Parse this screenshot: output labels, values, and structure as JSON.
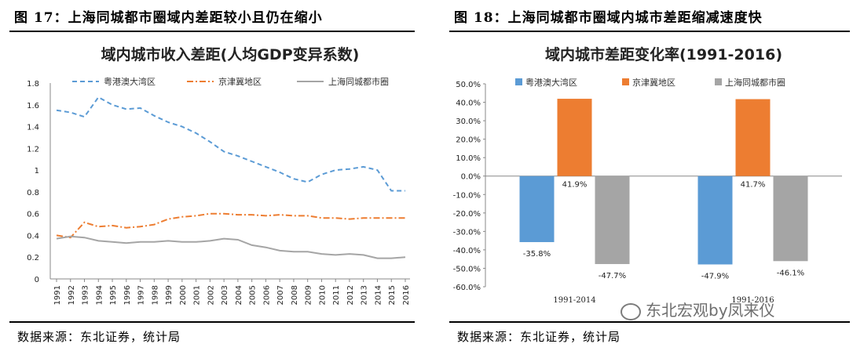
{
  "left": {
    "figure_title": "图 17：上海同城都市圈域内差距较小且仍在缩小",
    "source": "数据来源：东北证券，统计局"
  },
  "right": {
    "figure_title": "图 18：上海同城都市圈域内城市差距缩减速度快",
    "source": "数据来源：东北证券，统计局"
  },
  "watermark": "东北宏观by凤来仪",
  "chart_data": [
    {
      "type": "line",
      "title": "域内城市收入差距(人均GDP变异系数)",
      "xlabel": "",
      "ylabel": "",
      "ylim": [
        0,
        1.8
      ],
      "yticks": [
        "0",
        "0.2",
        "0.4",
        "0.6",
        "0.8",
        "1",
        "1.2",
        "1.4",
        "1.6",
        "1.8"
      ],
      "x": [
        "1991",
        "1992",
        "1993",
        "1994",
        "1995",
        "1996",
        "1997",
        "1998",
        "1999",
        "2000",
        "2001",
        "2002",
        "2003",
        "2004",
        "2005",
        "2006",
        "2007",
        "2008",
        "2009",
        "2010",
        "2011",
        "2012",
        "2013",
        "2014",
        "2015",
        "2016"
      ],
      "series": [
        {
          "name": "粤港澳大湾区",
          "style": "dashed",
          "color": "#5b9bd5",
          "values": [
            1.55,
            1.53,
            1.49,
            1.67,
            1.6,
            1.56,
            1.57,
            1.5,
            1.44,
            1.4,
            1.34,
            1.26,
            1.17,
            1.13,
            1.08,
            1.03,
            0.98,
            0.92,
            0.89,
            0.96,
            1.0,
            1.01,
            1.03,
            1.0,
            0.81,
            0.81
          ]
        },
        {
          "name": "京津冀地区",
          "style": "dashdot",
          "color": "#ed7d31",
          "values": [
            0.4,
            0.38,
            0.52,
            0.48,
            0.49,
            0.47,
            0.48,
            0.5,
            0.55,
            0.57,
            0.58,
            0.6,
            0.6,
            0.59,
            0.59,
            0.58,
            0.59,
            0.58,
            0.58,
            0.56,
            0.56,
            0.55,
            0.56,
            0.56,
            0.56,
            0.56
          ]
        },
        {
          "name": "上海同城都市圈",
          "style": "solid",
          "color": "#a5a5a5",
          "values": [
            0.37,
            0.39,
            0.38,
            0.35,
            0.34,
            0.33,
            0.34,
            0.34,
            0.35,
            0.34,
            0.34,
            0.35,
            0.37,
            0.36,
            0.31,
            0.29,
            0.26,
            0.25,
            0.25,
            0.23,
            0.22,
            0.23,
            0.22,
            0.19,
            0.19,
            0.2
          ]
        }
      ]
    },
    {
      "type": "bar",
      "title": "域内城市差距变化率(1991-2016)",
      "xlabel": "",
      "ylabel": "",
      "ylim": [
        -60,
        50
      ],
      "yticks": [
        "-60.0%",
        "-50.0%",
        "-40.0%",
        "-30.0%",
        "-20.0%",
        "-10.0%",
        "0.0%",
        "10.0%",
        "20.0%",
        "30.0%",
        "40.0%",
        "50.0%"
      ],
      "categories": [
        "1991-2014",
        "1991-2016"
      ],
      "series": [
        {
          "name": "粤港澳大湾区",
          "color": "#5b9bd5",
          "values": [
            -35.8,
            -47.9
          ],
          "labels": [
            "-35.8%",
            "-47.9%"
          ]
        },
        {
          "name": "京津冀地区",
          "color": "#ed7d31",
          "values": [
            41.9,
            41.7
          ],
          "labels": [
            "41.9%",
            "41.7%"
          ]
        },
        {
          "name": "上海同城都市圈",
          "color": "#a5a5a5",
          "values": [
            -47.7,
            -46.1
          ],
          "labels": [
            "-47.7%",
            "-46.1%"
          ]
        }
      ]
    }
  ]
}
